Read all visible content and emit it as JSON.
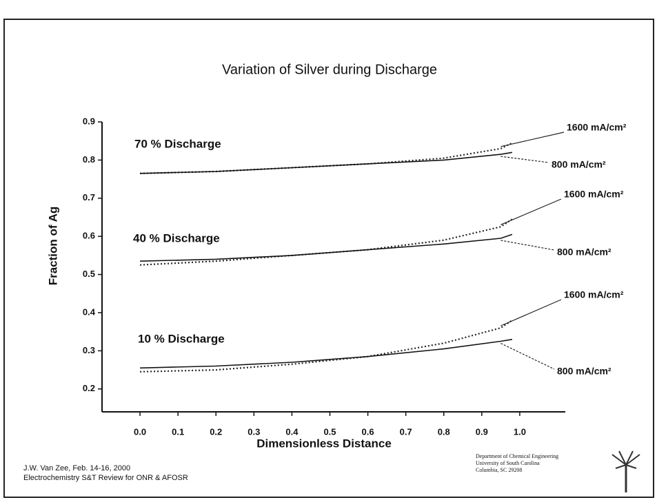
{
  "chart_data": {
    "type": "line",
    "title": "Variation of Silver during Discharge",
    "x_label": "Dimensionless Distance",
    "y_label": "Fraction of Ag",
    "xlim": [
      -0.1,
      1.12
    ],
    "ylim": [
      0.14,
      0.9
    ],
    "xticks": [
      {
        "value": 0,
        "label": "0.0"
      },
      0.1,
      0.2,
      0.3,
      0.4,
      0.5,
      0.6,
      0.7,
      0.8,
      0.9,
      {
        "value": 1,
        "label": "1.0"
      }
    ],
    "yticks": [
      0.2,
      0.3,
      0.4,
      0.5,
      0.6,
      0.7,
      0.8,
      0.9
    ],
    "x": [
      0,
      0.2,
      0.4,
      0.6,
      0.8,
      0.95,
      0.98
    ],
    "series": [
      {
        "name": "1600 mA/cm²",
        "color": "#222222",
        "style": "dotted",
        "values": [
          0.765,
          0.77,
          0.78,
          0.79,
          0.805,
          0.83,
          0.845
        ]
      },
      {
        "name": "800 mA/cm²",
        "color": "#111111",
        "style": "solid",
        "values": [
          0.765,
          0.77,
          0.78,
          0.79,
          0.8,
          0.815,
          0.82
        ]
      },
      {
        "name": "1600 mA/cm²",
        "color": "#222222",
        "style": "dotted",
        "values": [
          0.525,
          0.535,
          0.55,
          0.565,
          0.59,
          0.625,
          0.645
        ]
      },
      {
        "name": "800 mA/cm²",
        "color": "#111111",
        "style": "solid",
        "values": [
          0.535,
          0.54,
          0.55,
          0.565,
          0.58,
          0.595,
          0.605
        ]
      },
      {
        "name": "1600 mA/cm²",
        "color": "#222222",
        "style": "dotted",
        "values": [
          0.245,
          0.25,
          0.265,
          0.285,
          0.32,
          0.36,
          0.38
        ]
      },
      {
        "name": "800 mA/cm²",
        "color": "#111111",
        "style": "solid",
        "values": [
          0.255,
          0.26,
          0.27,
          0.285,
          0.305,
          0.325,
          0.33
        ]
      }
    ],
    "annotations": [
      "70 % Discharge",
      "40 % Discharge",
      "10 % Discharge"
    ]
  },
  "footer": {
    "left": [
      "J.W. Van Zee,  Feb. 14-16, 2000",
      "Electrochemistry S&T Review for ONR & AFOSR"
    ],
    "right": [
      "Department of Chemical Engineering",
      "University of South Carolina",
      "Columbia, SC 29208"
    ]
  }
}
